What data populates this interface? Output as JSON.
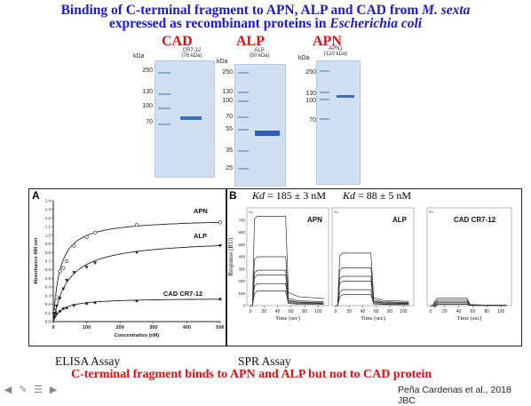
{
  "title_line1_prefix": "Binding of C-terminal fragment to APN, ALP and CAD from ",
  "title_line1_species": "M. sexta",
  "title_line2_prefix": "expressed as recombinant proteins in ",
  "title_line2_species": "Escherichia coli",
  "gels": [
    {
      "label": "CAD",
      "sub1": "CR7-12",
      "sub2": "(76 kDa)",
      "markers": [
        "250",
        "130",
        "100",
        "70"
      ]
    },
    {
      "label": "ALP",
      "sub1": "ALP",
      "sub2": "(50 kDa)",
      "markers": [
        "250",
        "130",
        "100",
        "70",
        "55",
        "35",
        "25"
      ]
    },
    {
      "label": "APN",
      "sub1": "APN1",
      "sub2": "(120 kDa)",
      "markers": [
        "250",
        "130",
        "100",
        "70"
      ]
    }
  ],
  "kda_label": "kDa",
  "panel_a": {
    "letter": "A",
    "ylabel": "Absorbance 490 nm",
    "xlabel": "Concentration (nM)",
    "y_ticks": [
      "0.0",
      "0.1",
      "0.2",
      "0.3",
      "0.4",
      "0.5",
      "0.6",
      "0.7",
      "0.8",
      "0.9",
      "1.0",
      "1.1",
      "1.2",
      "1.3",
      "1.4"
    ],
    "x_ticks": [
      "0",
      "100",
      "200",
      "300",
      "400",
      "500"
    ],
    "series": [
      {
        "name": "APN",
        "label": "APN"
      },
      {
        "name": "ALP",
        "label": "ALP"
      },
      {
        "name": "CAD CR7-12",
        "label": "CAD  CR7-12"
      }
    ]
  },
  "panel_b": {
    "letter": "B",
    "kd1_prefix": "Kd",
    "kd1_value": " = 185 ± 3 nM",
    "kd2_prefix": "Kd",
    "kd2_value": " = 88 ± 5 nM",
    "ylabel": "Response (RU)",
    "y_ticks": [
      "0",
      "100",
      "200",
      "300",
      "400",
      "500",
      "600",
      "700"
    ],
    "x_ticks": [
      "0",
      "20",
      "40",
      "60",
      "80",
      "100"
    ],
    "xlabel": "Time (sec)",
    "subpanels": [
      {
        "label": "APN",
        "corner": "RU"
      },
      {
        "label": "ALP",
        "corner": "RU"
      },
      {
        "label": "CAD  CR7-12",
        "corner": "RU"
      }
    ]
  },
  "elisa_label": "ELISA Assay",
  "spr_label": "SPR Assay",
  "conclusion": "C-terminal fragment binds to APN and ALP but not to CAD protein",
  "citation": "Peña Cardenas et al., 2018 JBC",
  "chart_data": [
    {
      "type": "scatter",
      "title": "",
      "xlabel": "Concentration (nM)",
      "ylabel": "Absorbance 490 nm",
      "xlim": [
        0,
        500
      ],
      "ylim": [
        0,
        1.4
      ],
      "series": [
        {
          "name": "APN",
          "x": [
            5,
            10,
            20,
            30,
            40,
            62,
            100,
            125,
            250,
            500
          ],
          "y": [
            0.12,
            0.28,
            0.58,
            0.62,
            0.7,
            0.88,
            0.98,
            1.03,
            1.12,
            1.15
          ]
        },
        {
          "name": "ALP",
          "x": [
            5,
            10,
            20,
            30,
            40,
            62,
            100,
            125,
            250,
            500
          ],
          "y": [
            0.1,
            0.18,
            0.27,
            0.38,
            0.48,
            0.57,
            0.63,
            0.68,
            0.8,
            0.88
          ]
        },
        {
          "name": "CAD CR7-12",
          "x": [
            5,
            10,
            20,
            30,
            40,
            62,
            100,
            125,
            250,
            500
          ],
          "y": [
            0.06,
            0.09,
            0.12,
            0.15,
            0.16,
            0.19,
            0.21,
            0.22,
            0.24,
            0.26
          ]
        }
      ]
    },
    {
      "type": "line",
      "title": "",
      "xlabel": "Time (sec)",
      "ylabel": "Response (RU)",
      "ylim": [
        0,
        700
      ],
      "xlim": [
        0,
        100
      ],
      "panels": [
        {
          "name": "APN",
          "plateaus": [
            730,
            400,
            290,
            250,
            180,
            120
          ]
        },
        {
          "name": "ALP",
          "plateaus": [
            430,
            310,
            240,
            200,
            130,
            90
          ]
        },
        {
          "name": "CAD CR7-12",
          "plateaus": [
            60,
            45,
            35,
            25,
            15,
            10
          ]
        }
      ]
    }
  ]
}
